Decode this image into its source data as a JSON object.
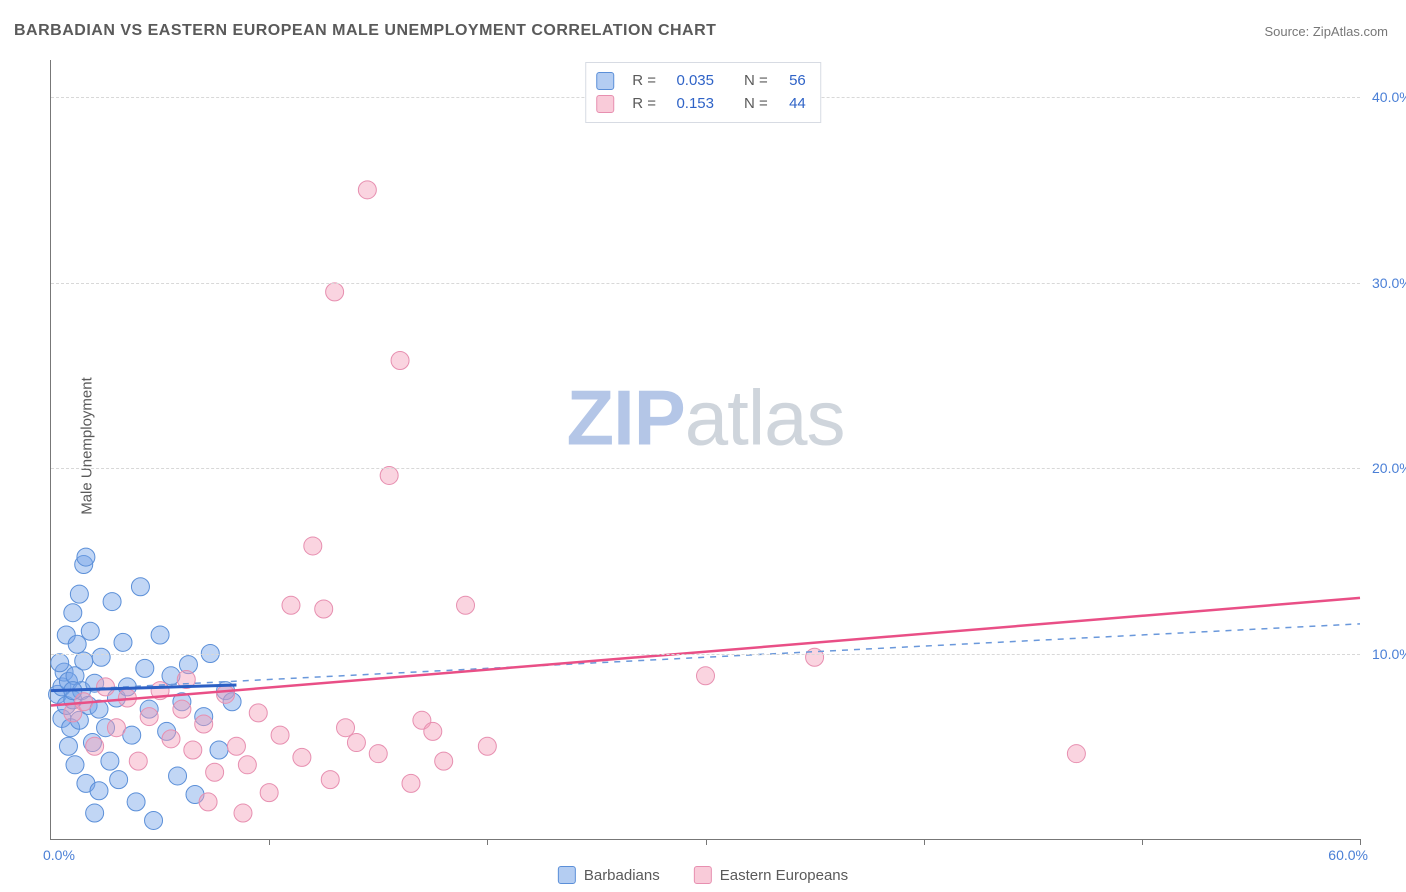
{
  "title": "BARBADIAN VS EASTERN EUROPEAN MALE UNEMPLOYMENT CORRELATION CHART",
  "source_label": "Source: ZipAtlas.com",
  "ylabel": "Male Unemployment",
  "watermark_a": "ZIP",
  "watermark_b": "atlas",
  "chart": {
    "type": "scatter",
    "background_color": "#ffffff",
    "xlim": [
      0,
      60
    ],
    "ylim": [
      0,
      42
    ],
    "xticks": [
      10,
      20,
      30,
      40,
      50,
      60
    ],
    "yticks": [
      10,
      20,
      30,
      40
    ],
    "ytick_labels": [
      "10.0%",
      "20.0%",
      "30.0%",
      "40.0%"
    ],
    "x_origin_label": "0.0%",
    "x_max_label": "60.0%",
    "grid_color": "#d8d8d8",
    "axis_color": "#777777",
    "tick_label_color": "#4a7fd6",
    "label_color": "#5a5a5a",
    "label_fontsize": 15,
    "tick_fontsize": 14,
    "title_fontsize": 16,
    "marker_radius": 9,
    "marker_opacity": 0.6,
    "series": [
      {
        "name": "Barbadians",
        "color_fill": "rgba(118,164,232,0.45)",
        "color_stroke": "#5b8fd8",
        "trend_solid": {
          "x1": 0,
          "y1": 8.0,
          "x2": 8.5,
          "y2": 8.3,
          "color": "#2b5fc4",
          "width": 3
        },
        "trend_dashed": {
          "x1": 0,
          "y1": 8.0,
          "x2": 60,
          "y2": 11.6,
          "color": "#6a98db",
          "width": 1.5,
          "dash": "6,6"
        },
        "points": [
          [
            0.3,
            7.8
          ],
          [
            0.5,
            8.2
          ],
          [
            0.5,
            6.5
          ],
          [
            0.6,
            9.0
          ],
          [
            0.7,
            7.2
          ],
          [
            0.7,
            11.0
          ],
          [
            0.8,
            5.0
          ],
          [
            0.8,
            8.5
          ],
          [
            0.9,
            6.0
          ],
          [
            1.0,
            7.5
          ],
          [
            1.0,
            12.2
          ],
          [
            1.1,
            4.0
          ],
          [
            1.1,
            8.8
          ],
          [
            1.2,
            10.5
          ],
          [
            1.3,
            13.2
          ],
          [
            1.3,
            6.4
          ],
          [
            1.4,
            8.0
          ],
          [
            1.5,
            14.8
          ],
          [
            1.5,
            9.6
          ],
          [
            1.6,
            3.0
          ],
          [
            1.7,
            7.2
          ],
          [
            1.8,
            11.2
          ],
          [
            1.9,
            5.2
          ],
          [
            2.0,
            8.4
          ],
          [
            2.0,
            1.4
          ],
          [
            2.2,
            2.6
          ],
          [
            2.3,
            9.8
          ],
          [
            2.5,
            6.0
          ],
          [
            2.7,
            4.2
          ],
          [
            2.8,
            12.8
          ],
          [
            3.0,
            7.6
          ],
          [
            3.1,
            3.2
          ],
          [
            3.3,
            10.6
          ],
          [
            3.5,
            8.2
          ],
          [
            3.7,
            5.6
          ],
          [
            3.9,
            2.0
          ],
          [
            4.1,
            13.6
          ],
          [
            4.3,
            9.2
          ],
          [
            4.5,
            7.0
          ],
          [
            4.7,
            1.0
          ],
          [
            5.0,
            11.0
          ],
          [
            5.3,
            5.8
          ],
          [
            5.5,
            8.8
          ],
          [
            5.8,
            3.4
          ],
          [
            6.0,
            7.4
          ],
          [
            6.3,
            9.4
          ],
          [
            6.6,
            2.4
          ],
          [
            7.0,
            6.6
          ],
          [
            7.3,
            10.0
          ],
          [
            7.7,
            4.8
          ],
          [
            8.0,
            8.0
          ],
          [
            8.3,
            7.4
          ],
          [
            1.6,
            15.2
          ],
          [
            2.2,
            7.0
          ],
          [
            0.4,
            9.5
          ],
          [
            1.0,
            8.0
          ]
        ]
      },
      {
        "name": "Eastern Europeans",
        "color_fill": "rgba(244,160,186,0.45)",
        "color_stroke": "#e78fb0",
        "trend_solid": {
          "x1": 0,
          "y1": 7.2,
          "x2": 60,
          "y2": 13.0,
          "color": "#e94f86",
          "width": 2.5
        },
        "points": [
          [
            1.0,
            6.8
          ],
          [
            1.5,
            7.4
          ],
          [
            2.0,
            5.0
          ],
          [
            2.5,
            8.2
          ],
          [
            3.0,
            6.0
          ],
          [
            3.5,
            7.6
          ],
          [
            4.0,
            4.2
          ],
          [
            4.5,
            6.6
          ],
          [
            5.0,
            8.0
          ],
          [
            5.5,
            5.4
          ],
          [
            6.0,
            7.0
          ],
          [
            6.5,
            4.8
          ],
          [
            7.0,
            6.2
          ],
          [
            7.5,
            3.6
          ],
          [
            8.0,
            7.8
          ],
          [
            8.5,
            5.0
          ],
          [
            9.0,
            4.0
          ],
          [
            9.5,
            6.8
          ],
          [
            10.0,
            2.5
          ],
          [
            10.5,
            5.6
          ],
          [
            11.0,
            12.6
          ],
          [
            11.5,
            4.4
          ],
          [
            12.0,
            15.8
          ],
          [
            12.5,
            12.4
          ],
          [
            13.0,
            29.5
          ],
          [
            13.5,
            6.0
          ],
          [
            14.0,
            5.2
          ],
          [
            14.5,
            35.0
          ],
          [
            15.0,
            4.6
          ],
          [
            15.5,
            19.6
          ],
          [
            16.0,
            25.8
          ],
          [
            16.5,
            3.0
          ],
          [
            17.0,
            6.4
          ],
          [
            17.5,
            5.8
          ],
          [
            18.0,
            4.2
          ],
          [
            19.0,
            12.6
          ],
          [
            20.0,
            5.0
          ],
          [
            30.0,
            8.8
          ],
          [
            35.0,
            9.8
          ],
          [
            47.0,
            4.6
          ],
          [
            7.2,
            2.0
          ],
          [
            8.8,
            1.4
          ],
          [
            12.8,
            3.2
          ],
          [
            6.2,
            8.6
          ]
        ]
      }
    ],
    "stats": [
      {
        "swatch_fill": "rgba(118,164,232,0.55)",
        "swatch_stroke": "#5b8fd8",
        "r": "0.035",
        "n": "56"
      },
      {
        "swatch_fill": "rgba(244,160,186,0.55)",
        "swatch_stroke": "#e78fb0",
        "r": "0.153",
        "n": "44"
      }
    ],
    "legend": [
      {
        "swatch_fill": "rgba(118,164,232,0.55)",
        "swatch_stroke": "#5b8fd8",
        "label": "Barbadians"
      },
      {
        "swatch_fill": "rgba(244,160,186,0.55)",
        "swatch_stroke": "#e78fb0",
        "label": "Eastern Europeans"
      }
    ]
  }
}
